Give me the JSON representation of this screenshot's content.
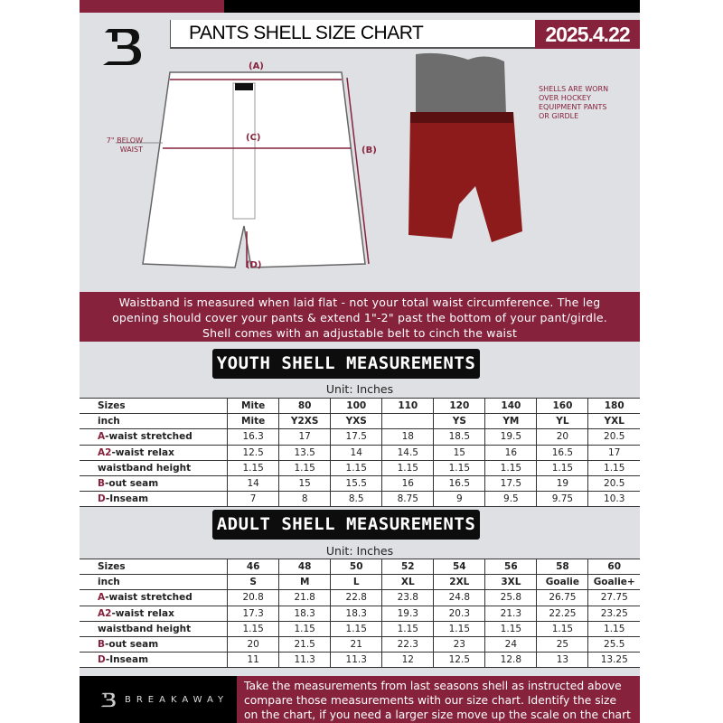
{
  "header": {
    "title": "PANTS SHELL SIZE CHART",
    "date": "2025.4.22"
  },
  "diagram": {
    "label_a": "(A)",
    "label_b": "(B)",
    "label_c": "(C)",
    "label_d": "(D)",
    "below_waist": "7\" BELOW WAIST",
    "photo_note": "SHELLS ARE WORN OVER HOCKEY EQUIPMENT PANTS OR GIRDLE"
  },
  "banner": {
    "line1": "Waistband is measured when laid flat - not your total waist circumference. The leg",
    "line2": "opening should cover your pants & extend 1\"-2\" past the bottom of your pant/girdle.",
    "line3": "Shell comes with an adjustable belt to cinch the waist"
  },
  "youth": {
    "title": "YOUTH SHELL MEASUREMENTS",
    "unit": "Unit: Inches",
    "rows": [
      {
        "prefix": "",
        "label": "Sizes",
        "cells": [
          "Mite",
          "80",
          "100",
          "110",
          "120",
          "140",
          "160",
          "180"
        ]
      },
      {
        "prefix": "",
        "label": "inch",
        "cells": [
          "Mite",
          "Y2XS",
          "YXS",
          "",
          "YS",
          "YM",
          "YL",
          "YXL"
        ]
      },
      {
        "prefix": "A",
        "label": "-waist stretched",
        "cells": [
          "16.3",
          "17",
          "17.5",
          "18",
          "18.5",
          "19.5",
          "20",
          "20.5"
        ]
      },
      {
        "prefix": "A2",
        "label": "-waist relax",
        "cells": [
          "12.5",
          "13.5",
          "14",
          "14.5",
          "15",
          "16",
          "16.5",
          "17"
        ]
      },
      {
        "prefix": "",
        "label": "waistband height",
        "cells": [
          "1.15",
          "1.15",
          "1.15",
          "1.15",
          "1.15",
          "1.15",
          "1.15",
          "1.15"
        ]
      },
      {
        "prefix": "B",
        "label": "-out seam",
        "cells": [
          "14",
          "15",
          "15.5",
          "16",
          "16.5",
          "17.5",
          "19",
          "20.5"
        ]
      },
      {
        "prefix": "D",
        "label": "-Inseam",
        "cells": [
          "7",
          "8",
          "8.5",
          "8.75",
          "9",
          "9.5",
          "9.75",
          "10.3"
        ]
      }
    ]
  },
  "adult": {
    "title": "ADULT SHELL MEASUREMENTS",
    "unit": "Unit: Inches",
    "rows": [
      {
        "prefix": "",
        "label": "Sizes",
        "cells": [
          "46",
          "48",
          "50",
          "52",
          "54",
          "56",
          "58",
          "60"
        ]
      },
      {
        "prefix": "",
        "label": "inch",
        "cells": [
          "S",
          "M",
          "L",
          "XL",
          "2XL",
          "3XL",
          "Goalie",
          "Goalie+"
        ]
      },
      {
        "prefix": "A",
        "label": "-waist stretched",
        "cells": [
          "20.8",
          "21.8",
          "22.8",
          "23.8",
          "24.8",
          "25.8",
          "26.75",
          "27.75"
        ]
      },
      {
        "prefix": "A2",
        "label": "-waist relax",
        "cells": [
          "17.3",
          "18.3",
          "18.3",
          "19.3",
          "20.3",
          "21.3",
          "22.25",
          "23.25"
        ]
      },
      {
        "prefix": "",
        "label": "waistband height",
        "cells": [
          "1.15",
          "1.15",
          "1.15",
          "1.15",
          "1.15",
          "1.15",
          "1.15",
          "1.15"
        ]
      },
      {
        "prefix": "B",
        "label": "-out seam",
        "cells": [
          "20",
          "21.5",
          "21",
          "22.3",
          "23",
          "24",
          "25",
          "25.5"
        ]
      },
      {
        "prefix": "D",
        "label": "-Inseam",
        "cells": [
          "11",
          "11.3",
          "11.3",
          "12",
          "12.5",
          "12.8",
          "13",
          "13.25"
        ]
      }
    ]
  },
  "footer": {
    "brand": "BREAKAWAY",
    "text1": "Take the measurements from last seasons shell as instructed above",
    "text2": "compare those measurements  with our size chart. Identify the size",
    "text3": "on the chart, if you need a larger size move up the scale on the chart"
  },
  "colors": {
    "maroon": "#86223c",
    "black": "#000000",
    "background": "#dfe0e3"
  }
}
